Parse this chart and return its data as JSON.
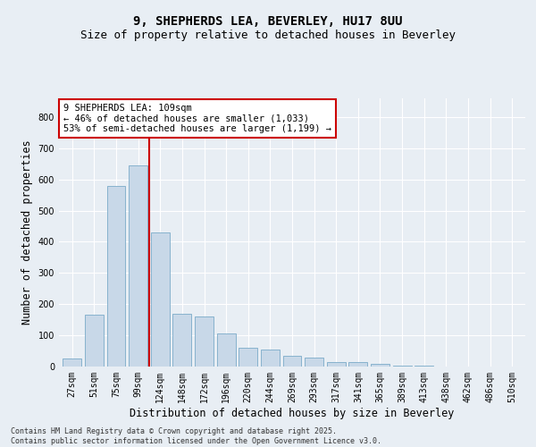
{
  "title1": "9, SHEPHERDS LEA, BEVERLEY, HU17 8UU",
  "title2": "Size of property relative to detached houses in Beverley",
  "xlabel": "Distribution of detached houses by size in Beverley",
  "ylabel": "Number of detached properties",
  "bar_labels": [
    "27sqm",
    "51sqm",
    "75sqm",
    "99sqm",
    "124sqm",
    "148sqm",
    "172sqm",
    "196sqm",
    "220sqm",
    "244sqm",
    "269sqm",
    "293sqm",
    "317sqm",
    "341sqm",
    "365sqm",
    "389sqm",
    "413sqm",
    "438sqm",
    "462sqm",
    "486sqm",
    "510sqm"
  ],
  "bar_values": [
    25,
    165,
    580,
    645,
    430,
    170,
    160,
    105,
    60,
    55,
    35,
    30,
    15,
    15,
    8,
    4,
    4,
    1,
    1,
    1,
    1
  ],
  "bar_color": "#c8d8e8",
  "bar_edge_color": "#7aaac8",
  "vline_x": 3.5,
  "vline_color": "#cc0000",
  "annotation_title": "9 SHEPHERDS LEA: 109sqm",
  "annotation_line1": "← 46% of detached houses are smaller (1,033)",
  "annotation_line2": "53% of semi-detached houses are larger (1,199) →",
  "annotation_box_color": "#cc0000",
  "annotation_bg": "#ffffff",
  "ylim": [
    0,
    860
  ],
  "yticks": [
    0,
    100,
    200,
    300,
    400,
    500,
    600,
    700,
    800
  ],
  "bg_color": "#e8eef4",
  "plot_bg_color": "#e8eef4",
  "footer1": "Contains HM Land Registry data © Crown copyright and database right 2025.",
  "footer2": "Contains public sector information licensed under the Open Government Licence v3.0.",
  "grid_color": "#ffffff",
  "title_fontsize": 10,
  "subtitle_fontsize": 9,
  "tick_fontsize": 7,
  "label_fontsize": 8.5,
  "footer_fontsize": 6
}
